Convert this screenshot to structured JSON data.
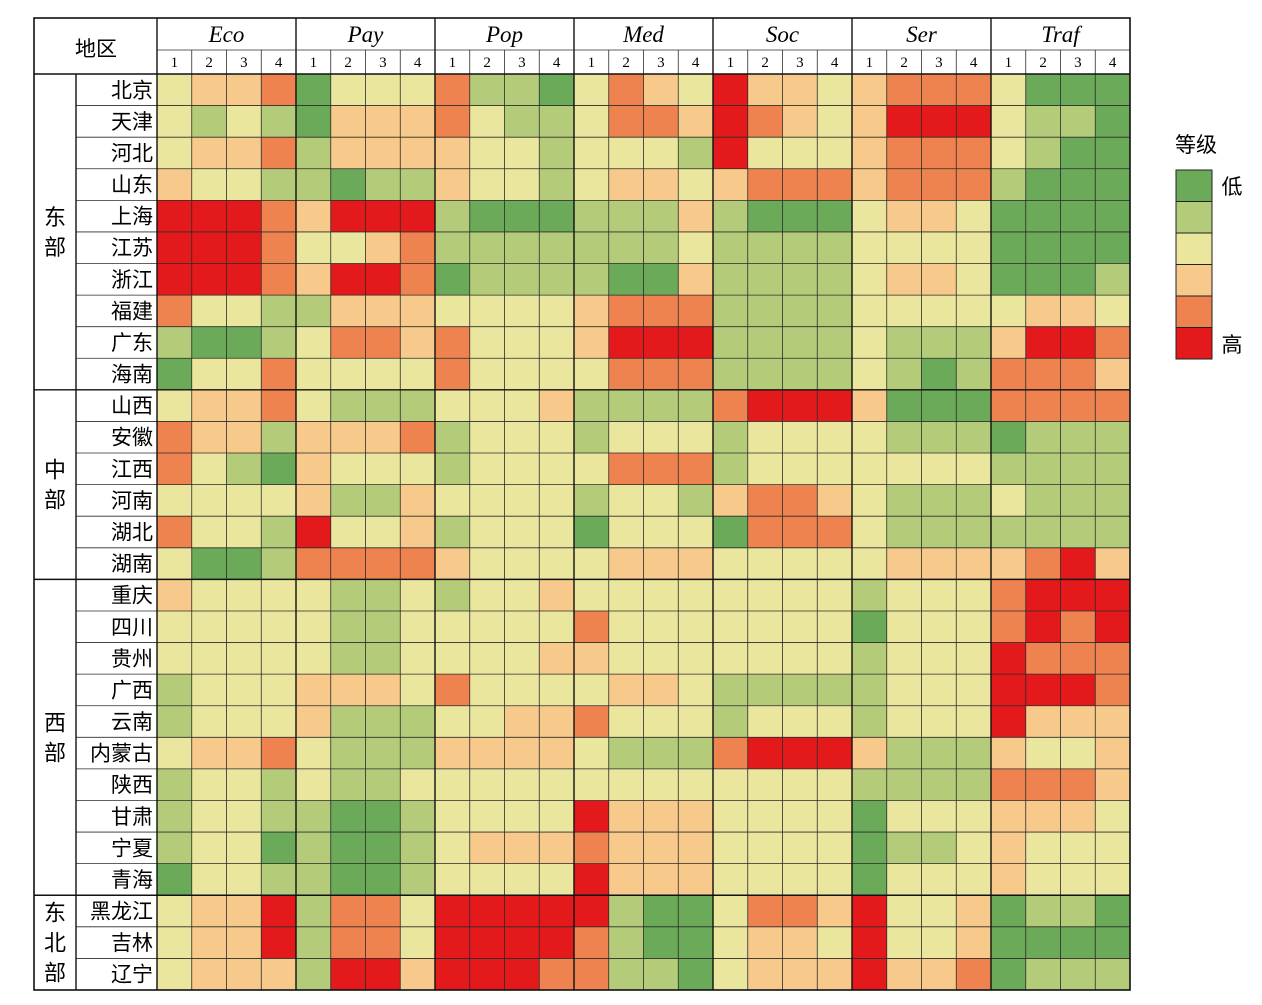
{
  "chart_data": {
    "type": "heatmap",
    "corner_label": "地区",
    "groups": [
      "Eco",
      "Pay",
      "Pop",
      "Med",
      "Soc",
      "Ser",
      "Traf"
    ],
    "subcolumns": [
      "1",
      "2",
      "3",
      "4"
    ],
    "regions": [
      {
        "name": "东部",
        "chars": [
          "东",
          "部"
        ],
        "provinces": [
          "北京",
          "天津",
          "河北",
          "山东",
          "上海",
          "江苏",
          "浙江",
          "福建",
          "广东",
          "海南"
        ]
      },
      {
        "name": "中部",
        "chars": [
          "中",
          "部"
        ],
        "provinces": [
          "山西",
          "安徽",
          "江西",
          "河南",
          "湖北",
          "湖南"
        ]
      },
      {
        "name": "西部",
        "chars": [
          "西",
          "部"
        ],
        "provinces": [
          "重庆",
          "四川",
          "贵州",
          "广西",
          "云南",
          "内蒙古",
          "陕西",
          "甘肃",
          "宁夏",
          "青海"
        ]
      },
      {
        "name": "东北部",
        "chars": [
          "东",
          "北",
          "部"
        ],
        "provinces": [
          "黑龙江",
          "吉林",
          "辽宁"
        ]
      }
    ],
    "rows": [
      {
        "province": "北京",
        "levels": [
          3,
          4,
          4,
          5,
          1,
          3,
          3,
          3,
          5,
          2,
          2,
          1,
          3,
          5,
          4,
          3,
          6,
          4,
          4,
          3,
          4,
          5,
          5,
          5,
          3,
          1,
          1,
          1
        ]
      },
      {
        "province": "天津",
        "levels": [
          3,
          2,
          3,
          2,
          1,
          4,
          4,
          4,
          5,
          3,
          2,
          2,
          3,
          5,
          5,
          4,
          6,
          5,
          4,
          3,
          4,
          6,
          6,
          6,
          3,
          2,
          2,
          1
        ]
      },
      {
        "province": "河北",
        "levels": [
          3,
          4,
          4,
          5,
          2,
          4,
          4,
          4,
          4,
          3,
          3,
          2,
          3,
          3,
          3,
          2,
          6,
          3,
          3,
          3,
          4,
          5,
          5,
          5,
          3,
          2,
          1,
          1
        ]
      },
      {
        "province": "山东",
        "levels": [
          4,
          3,
          3,
          2,
          2,
          1,
          2,
          2,
          4,
          3,
          3,
          2,
          3,
          4,
          4,
          3,
          4,
          5,
          5,
          5,
          4,
          5,
          5,
          5,
          2,
          1,
          1,
          1
        ]
      },
      {
        "province": "上海",
        "levels": [
          6,
          6,
          6,
          5,
          4,
          6,
          6,
          6,
          2,
          1,
          1,
          1,
          2,
          2,
          2,
          4,
          2,
          1,
          1,
          1,
          3,
          4,
          4,
          3,
          1,
          1,
          1,
          1
        ]
      },
      {
        "province": "江苏",
        "levels": [
          6,
          6,
          6,
          5,
          3,
          3,
          4,
          5,
          2,
          2,
          2,
          2,
          2,
          2,
          2,
          3,
          2,
          2,
          2,
          2,
          3,
          3,
          3,
          3,
          1,
          1,
          1,
          1
        ]
      },
      {
        "province": "浙江",
        "levels": [
          6,
          6,
          6,
          5,
          4,
          6,
          6,
          5,
          1,
          2,
          2,
          2,
          2,
          1,
          1,
          4,
          2,
          2,
          2,
          2,
          3,
          4,
          4,
          3,
          1,
          1,
          1,
          2
        ]
      },
      {
        "province": "福建",
        "levels": [
          5,
          3,
          3,
          2,
          2,
          4,
          4,
          4,
          3,
          3,
          3,
          3,
          4,
          5,
          5,
          5,
          2,
          2,
          2,
          2,
          3,
          3,
          3,
          3,
          3,
          4,
          4,
          3
        ]
      },
      {
        "province": "广东",
        "levels": [
          2,
          1,
          1,
          2,
          3,
          5,
          5,
          4,
          5,
          3,
          3,
          3,
          4,
          6,
          6,
          6,
          2,
          2,
          2,
          2,
          3,
          2,
          2,
          2,
          4,
          6,
          6,
          5
        ]
      },
      {
        "province": "海南",
        "levels": [
          1,
          3,
          3,
          5,
          3,
          3,
          3,
          3,
          5,
          3,
          3,
          3,
          3,
          5,
          5,
          5,
          2,
          2,
          2,
          2,
          3,
          2,
          1,
          2,
          5,
          5,
          5,
          4
        ]
      },
      {
        "province": "山西",
        "levels": [
          3,
          4,
          4,
          5,
          3,
          2,
          2,
          2,
          3,
          3,
          3,
          4,
          2,
          2,
          2,
          2,
          5,
          6,
          6,
          6,
          4,
          1,
          1,
          1,
          5,
          5,
          5,
          5
        ]
      },
      {
        "province": "安徽",
        "levels": [
          5,
          4,
          4,
          2,
          4,
          4,
          4,
          5,
          2,
          3,
          3,
          3,
          2,
          3,
          3,
          3,
          2,
          3,
          3,
          3,
          3,
          2,
          2,
          2,
          1,
          2,
          2,
          2
        ]
      },
      {
        "province": "江西",
        "levels": [
          5,
          3,
          2,
          1,
          4,
          3,
          3,
          3,
          2,
          3,
          3,
          3,
          3,
          5,
          5,
          5,
          2,
          3,
          3,
          3,
          3,
          3,
          3,
          3,
          2,
          2,
          2,
          2
        ]
      },
      {
        "province": "河南",
        "levels": [
          3,
          3,
          3,
          3,
          4,
          2,
          2,
          4,
          3,
          3,
          3,
          3,
          2,
          3,
          3,
          2,
          4,
          5,
          5,
          4,
          3,
          2,
          2,
          2,
          3,
          2,
          2,
          2
        ]
      },
      {
        "province": "湖北",
        "levels": [
          5,
          3,
          3,
          2,
          6,
          3,
          3,
          4,
          2,
          3,
          3,
          3,
          1,
          3,
          3,
          3,
          1,
          5,
          5,
          5,
          3,
          2,
          2,
          2,
          2,
          2,
          2,
          2
        ]
      },
      {
        "province": "湖南",
        "levels": [
          3,
          1,
          1,
          2,
          5,
          5,
          5,
          5,
          4,
          3,
          3,
          3,
          3,
          4,
          4,
          4,
          3,
          3,
          3,
          3,
          3,
          4,
          4,
          4,
          4,
          5,
          6,
          4
        ]
      },
      {
        "province": "重庆",
        "levels": [
          4,
          3,
          3,
          3,
          3,
          2,
          2,
          3,
          2,
          3,
          3,
          4,
          3,
          3,
          3,
          3,
          3,
          3,
          3,
          3,
          2,
          3,
          3,
          3,
          5,
          6,
          6,
          6
        ]
      },
      {
        "province": "四川",
        "levels": [
          3,
          3,
          3,
          3,
          3,
          2,
          2,
          3,
          3,
          3,
          3,
          3,
          5,
          3,
          3,
          3,
          3,
          3,
          3,
          3,
          1,
          3,
          3,
          3,
          5,
          6,
          5,
          6
        ]
      },
      {
        "province": "贵州",
        "levels": [
          3,
          3,
          3,
          3,
          3,
          2,
          2,
          3,
          3,
          3,
          3,
          4,
          4,
          3,
          3,
          3,
          3,
          3,
          3,
          3,
          2,
          3,
          3,
          3,
          6,
          5,
          5,
          5
        ]
      },
      {
        "province": "广西",
        "levels": [
          2,
          3,
          3,
          3,
          4,
          4,
          4,
          3,
          5,
          3,
          3,
          3,
          3,
          4,
          4,
          3,
          2,
          2,
          2,
          2,
          2,
          3,
          3,
          3,
          6,
          6,
          6,
          5
        ]
      },
      {
        "province": "云南",
        "levels": [
          2,
          3,
          3,
          3,
          4,
          2,
          2,
          2,
          3,
          3,
          4,
          4,
          5,
          3,
          3,
          3,
          2,
          3,
          3,
          3,
          2,
          3,
          3,
          3,
          6,
          4,
          4,
          4
        ]
      },
      {
        "province": "内蒙古",
        "levels": [
          3,
          4,
          4,
          5,
          3,
          2,
          2,
          2,
          4,
          4,
          4,
          4,
          3,
          2,
          2,
          2,
          5,
          6,
          6,
          6,
          4,
          2,
          2,
          2,
          4,
          3,
          3,
          4
        ]
      },
      {
        "province": "陕西",
        "levels": [
          2,
          3,
          3,
          2,
          3,
          2,
          2,
          3,
          3,
          3,
          3,
          3,
          3,
          3,
          3,
          3,
          3,
          3,
          3,
          3,
          2,
          2,
          2,
          2,
          5,
          5,
          5,
          4
        ]
      },
      {
        "province": "甘肃",
        "levels": [
          2,
          3,
          3,
          2,
          2,
          1,
          1,
          2,
          3,
          3,
          3,
          3,
          6,
          4,
          4,
          4,
          3,
          3,
          3,
          3,
          1,
          3,
          3,
          3,
          4,
          4,
          4,
          3
        ]
      },
      {
        "province": "宁夏",
        "levels": [
          2,
          3,
          3,
          1,
          2,
          1,
          1,
          2,
          3,
          4,
          4,
          4,
          5,
          4,
          4,
          4,
          3,
          3,
          3,
          3,
          1,
          2,
          2,
          3,
          4,
          3,
          3,
          3
        ]
      },
      {
        "province": "青海",
        "levels": [
          1,
          3,
          3,
          2,
          2,
          1,
          1,
          2,
          3,
          3,
          3,
          3,
          6,
          4,
          4,
          4,
          3,
          3,
          3,
          3,
          1,
          3,
          3,
          3,
          4,
          3,
          3,
          3
        ]
      },
      {
        "province": "黑龙江",
        "levels": [
          3,
          4,
          4,
          6,
          2,
          5,
          5,
          3,
          6,
          6,
          6,
          6,
          6,
          2,
          1,
          1,
          3,
          5,
          5,
          4,
          6,
          3,
          3,
          4,
          1,
          2,
          2,
          1
        ]
      },
      {
        "province": "吉林",
        "levels": [
          3,
          4,
          4,
          6,
          2,
          5,
          5,
          3,
          6,
          6,
          6,
          6,
          5,
          2,
          1,
          1,
          3,
          4,
          4,
          3,
          6,
          3,
          3,
          4,
          1,
          1,
          1,
          1
        ]
      },
      {
        "province": "辽宁",
        "levels": [
          3,
          4,
          4,
          4,
          2,
          6,
          6,
          4,
          6,
          6,
          6,
          5,
          5,
          2,
          2,
          1,
          3,
          4,
          4,
          4,
          6,
          4,
          4,
          5,
          1,
          2,
          2,
          2
        ]
      }
    ],
    "legend": {
      "title": "等级",
      "low_label": "低",
      "high_label": "高",
      "colors": [
        "#6aaa58",
        "#b4cc7a",
        "#ebe69e",
        "#f7c98a",
        "#ee8350",
        "#e4191c"
      ],
      "placement": "right"
    },
    "level_scale": [
      1,
      6
    ]
  }
}
